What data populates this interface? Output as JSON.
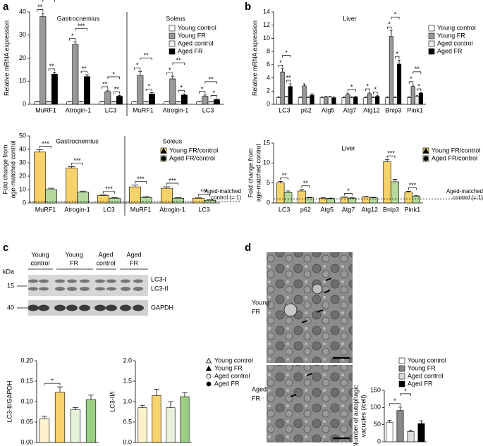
{
  "panel_labels": [
    "a",
    "b",
    "c",
    "d"
  ],
  "blot": {
    "lanes": [
      [
        "Young",
        "control"
      ],
      [
        "Young",
        "FR"
      ],
      [
        "Aged",
        "control"
      ],
      [
        "Aged",
        "FR"
      ]
    ],
    "unit": "kDa",
    "sizes": [
      15,
      40
    ],
    "bands": [
      "LC3-I",
      "LC3-II",
      "GAPDH"
    ]
  },
  "micrographs": {
    "labels": [
      [
        "Young",
        "FR"
      ],
      [
        "Aged",
        "FR"
      ]
    ]
  },
  "chart_data": [
    {
      "type": "bar",
      "ylabel": "Relative mRNA expression",
      "group_titles": [
        "Gastrocnemius",
        "Soleus"
      ],
      "categories": [
        "MuRF1",
        "Atrogin-1",
        "LC3",
        "MuRF1",
        "Atrogin-1",
        "LC3"
      ],
      "ylim": [
        0,
        40
      ],
      "yticks": [
        0,
        10,
        20,
        30,
        40
      ],
      "legend": true,
      "series": [
        {
          "name": "Young control",
          "color": "#ffffff",
          "values": [
            1,
            1,
            1,
            1,
            1,
            1
          ],
          "errors": [
            0.1,
            0.1,
            0.1,
            0.1,
            0.1,
            0.1
          ]
        },
        {
          "name": "Young FR",
          "color": "#999999",
          "values": [
            38,
            26,
            5.5,
            12.5,
            11,
            3.5
          ],
          "errors": [
            1.5,
            1,
            0.6,
            1.8,
            1.2,
            0.5
          ]
        },
        {
          "name": "Aged control",
          "color": "#eeeeee",
          "values": [
            1,
            1,
            1,
            1,
            1,
            1
          ],
          "errors": [
            0.1,
            0.1,
            0.1,
            0.1,
            0.1,
            0.1
          ]
        },
        {
          "name": "Aged FR",
          "color": "#000000",
          "values": [
            13,
            12,
            3.5,
            4.5,
            4,
            2
          ],
          "errors": [
            0.8,
            0.8,
            0.4,
            0.6,
            0.5,
            0.3
          ]
        }
      ],
      "brackets": [
        [
          {
            "pair": [
              0,
              1
            ],
            "label": "**"
          },
          {
            "pair": [
              2,
              3
            ],
            "label": "**"
          },
          {
            "pair": [
              1,
              3
            ],
            "label": "***"
          }
        ],
        [
          {
            "pair": [
              0,
              1
            ],
            "label": "*"
          },
          {
            "pair": [
              2,
              3
            ],
            "label": "**"
          },
          {
            "pair": [
              1,
              3
            ],
            "label": "***"
          }
        ],
        [
          {
            "pair": [
              0,
              1
            ],
            "label": "**"
          },
          {
            "pair": [
              2,
              3
            ],
            "label": "**"
          },
          {
            "pair": [
              1,
              3
            ],
            "label": "*"
          }
        ],
        [
          {
            "pair": [
              0,
              1
            ],
            "label": "*"
          },
          {
            "pair": [
              2,
              3
            ],
            "label": "*"
          },
          {
            "pair": [
              1,
              3
            ],
            "label": "**"
          }
        ],
        [
          {
            "pair": [
              0,
              1
            ],
            "label": "*"
          },
          {
            "pair": [
              2,
              3
            ],
            "label": "*"
          },
          {
            "pair": [
              1,
              3
            ],
            "label": "**"
          }
        ],
        [
          {
            "pair": [
              0,
              1
            ],
            "label": "*"
          },
          {
            "pair": [
              2,
              3
            ],
            "label": "*"
          },
          {
            "pair": [
              1,
              3
            ],
            "label": "**"
          }
        ]
      ]
    },
    {
      "type": "bar",
      "ylabel": "Relative mRNA expression",
      "group_titles": [
        "Liver"
      ],
      "categories": [
        "LC3",
        "p62",
        "Atg5",
        "Atg7",
        "Atg12",
        "Bnip3",
        "Pink1"
      ],
      "ylim": [
        0,
        14
      ],
      "yticks": [
        0,
        2,
        4,
        6,
        8,
        10,
        12,
        14
      ],
      "legend": true,
      "series": [
        {
          "name": "Young control",
          "color": "#ffffff",
          "values": [
            1,
            1,
            1,
            1,
            1,
            1,
            1
          ],
          "errors": [
            0.1,
            0.1,
            0.1,
            0.1,
            0.1,
            0.1,
            0.1
          ]
        },
        {
          "name": "Young FR",
          "color": "#999999",
          "values": [
            4.9,
            2.8,
            1.1,
            1.5,
            1.6,
            10.3,
            2.7
          ],
          "errors": [
            0.5,
            0.3,
            0.1,
            0.2,
            0.2,
            0.9,
            0.2
          ]
        },
        {
          "name": "Aged control",
          "color": "#eeeeee",
          "values": [
            1.1,
            1,
            1.1,
            1,
            1,
            1,
            1.2
          ],
          "errors": [
            0.1,
            0.1,
            0.1,
            0.1,
            0.1,
            0.1,
            0.1
          ]
        },
        {
          "name": "Aged FR",
          "color": "#000000",
          "values": [
            2.7,
            1.4,
            1,
            1.1,
            1.2,
            6.1,
            1.7
          ],
          "errors": [
            0.4,
            0.2,
            0.1,
            0.1,
            0.1,
            0.6,
            0.1
          ]
        }
      ],
      "brackets": [
        [
          {
            "pair": [
              0,
              1
            ],
            "label": "*"
          },
          {
            "pair": [
              2,
              3
            ],
            "label": "**"
          },
          {
            "pair": [
              1,
              3
            ],
            "label": "*"
          }
        ],
        [],
        [],
        [
          {
            "pair": [
              1,
              3
            ],
            "label": "*"
          }
        ],
        [
          {
            "pair": [
              0,
              1
            ],
            "label": "*"
          },
          {
            "pair": [
              2,
              3
            ],
            "label": "*"
          }
        ],
        [
          {
            "pair": [
              0,
              1
            ],
            "label": "*"
          },
          {
            "pair": [
              2,
              3
            ],
            "label": "*"
          },
          {
            "pair": [
              1,
              3
            ],
            "label": "*"
          }
        ],
        [
          {
            "pair": [
              0,
              1
            ],
            "label": "*"
          },
          {
            "pair": [
              2,
              3
            ],
            "label": "*"
          },
          {
            "pair": [
              1,
              3
            ],
            "label": "**"
          }
        ]
      ]
    },
    {
      "type": "bar",
      "ylabel": [
        "Fold change from",
        "age-matched control"
      ],
      "group_titles": [
        "Gastrocnemius",
        "Soleus"
      ],
      "categories": [
        "MuRF1",
        "Atrogin-1",
        "LC3",
        "MuRF1",
        "Atrogin-1",
        "LC3"
      ],
      "ylim": [
        0,
        50
      ],
      "yticks": [
        0,
        10,
        20,
        30,
        40,
        50
      ],
      "legend": true,
      "reference": {
        "value": 1,
        "label": [
          "Aged-matched",
          "control (= 1)"
        ]
      },
      "series": [
        {
          "name": "Young FR/control",
          "color": "#f7d26b",
          "marker": "triangle",
          "values": [
            38,
            26,
            5.5,
            12,
            11,
            3.5
          ],
          "errors": [
            1.8,
            1,
            0.4,
            1.3,
            1.1,
            0.3
          ]
        },
        {
          "name": "Aged FR/control",
          "color": "#b5d99c",
          "marker": "circle",
          "values": [
            10,
            8,
            3.5,
            4,
            3.5,
            2
          ],
          "errors": [
            1,
            0.8,
            0.4,
            0.7,
            0.5,
            0.3
          ]
        }
      ],
      "significance": [
        "***",
        "***",
        "***",
        "***",
        "***",
        "***"
      ]
    },
    {
      "type": "bar",
      "ylabel": [
        "Fold change from",
        "age-matched control"
      ],
      "group_titles": [
        "Liver"
      ],
      "categories": [
        "LC3",
        "p62",
        "Atg5",
        "Atg7",
        "Atg12",
        "Bnip3",
        "Pink1"
      ],
      "ylim": [
        0,
        15
      ],
      "yticks": [
        0,
        5,
        10,
        15
      ],
      "legend": true,
      "reference": {
        "value": 1,
        "label": [
          "Aged-matched",
          "control (= 1)"
        ]
      },
      "series": [
        {
          "name": "Young FR/control",
          "color": "#f7d26b",
          "marker": "triangle",
          "values": [
            5,
            3,
            1.2,
            1.4,
            1.5,
            10.3,
            2.7
          ],
          "errors": [
            0.4,
            0.4,
            0.1,
            0.1,
            0.1,
            0.6,
            0.2
          ]
        },
        {
          "name": "Aged FR/control",
          "color": "#b5d99c",
          "marker": "circle",
          "values": [
            2.6,
            1.3,
            1.1,
            1.2,
            1.3,
            5.3,
            1.7
          ],
          "errors": [
            0.4,
            0.1,
            0.1,
            0.1,
            0.1,
            0.6,
            0.1
          ]
        }
      ],
      "significance": [
        "**",
        "**",
        null,
        "*",
        null,
        "***",
        "***"
      ]
    },
    {
      "type": "bar",
      "ylabel": "LC3-II/GAPDH",
      "categories": [
        null,
        null,
        null,
        null
      ],
      "ylim": [
        0,
        0.2
      ],
      "yticks": [
        {
          "value": 0,
          "label": "0.00"
        },
        0.05,
        {
          "value": 0.1,
          "label": "0.10"
        },
        0.15,
        {
          "value": 0.2,
          "label": "0.20"
        }
      ],
      "values": [
        0.058,
        0.123,
        0.08,
        0.105
      ],
      "errors": [
        0.006,
        0.013,
        0.005,
        0.011
      ],
      "colors": [
        "#fdf2cc",
        "#f7d26b",
        "#e6f2dc",
        "#9ccf86"
      ],
      "brackets": [
        {
          "pair": [
            0,
            1
          ],
          "label": "*"
        }
      ]
    },
    {
      "type": "bar",
      "ylabel": "LC3-II/I",
      "categories": [
        null,
        null,
        null,
        null
      ],
      "ylim": [
        0,
        2
      ],
      "yticks": [
        {
          "value": 0,
          "label": "0.0"
        },
        0.5,
        {
          "value": 1,
          "label": "1.0"
        },
        1.5,
        {
          "value": 2,
          "label": "2.0"
        }
      ],
      "values": [
        0.85,
        1.15,
        0.85,
        1.12
      ],
      "errors": [
        0.06,
        0.15,
        0.15,
        0.1
      ],
      "colors": [
        "#fdf2cc",
        "#f7d26b",
        "#e6f2dc",
        "#9ccf86"
      ],
      "legend": [
        {
          "name": "Young control",
          "marker": "triangle-open"
        },
        {
          "name": "Young FR",
          "marker": "triangle"
        },
        {
          "name": "Aged control",
          "marker": "circle-open"
        },
        {
          "name": "Aged FR",
          "marker": "circle"
        }
      ]
    },
    {
      "type": "bar",
      "ylabel": [
        "Number of autophagic",
        "vacuoles (/cell)"
      ],
      "categories": [
        null,
        null,
        null,
        null
      ],
      "ylim": [
        0,
        150
      ],
      "yticks": [
        0,
        50,
        100,
        150
      ],
      "values": [
        57,
        91,
        30,
        53
      ],
      "errors": [
        5,
        10,
        3,
        8
      ],
      "colors": [
        "#ffffff",
        "#888888",
        "#dddddd",
        "#000000"
      ],
      "brackets": [
        {
          "pair": [
            0,
            1
          ],
          "label": "*"
        },
        {
          "pair": [
            1,
            2
          ],
          "label": "*"
        }
      ],
      "legend": [
        {
          "name": "Young control"
        },
        {
          "name": "Young FR"
        },
        {
          "name": "Aged control"
        },
        {
          "name": "Aged FR"
        }
      ]
    }
  ]
}
